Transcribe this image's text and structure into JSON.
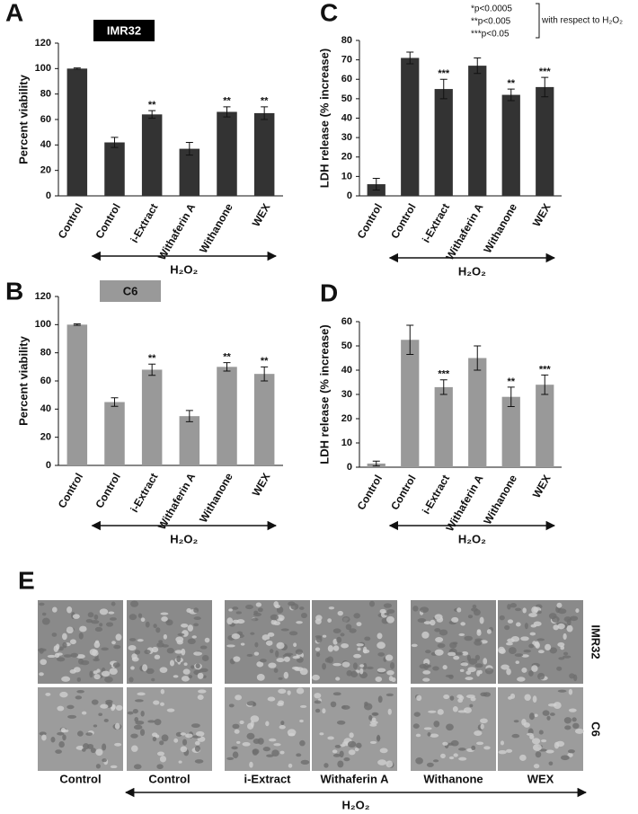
{
  "chart_data": [
    {
      "type": "bar",
      "panel": "A",
      "title": "IMR32",
      "ylabel": "Percent viability",
      "categories": [
        "Control",
        "Control",
        "i-Extract",
        "Withaferin A",
        "Withanone",
        "WEX"
      ],
      "values": [
        100,
        42,
        64,
        37,
        66,
        65
      ],
      "errors": [
        0.5,
        4,
        3,
        5,
        4,
        5
      ],
      "annotations": [
        null,
        null,
        "**",
        null,
        "**",
        "**"
      ],
      "group_label": "H₂O₂",
      "color": "#333333",
      "ylim": [
        0,
        120
      ],
      "yticks": [
        0,
        20,
        40,
        60,
        80,
        100,
        120
      ]
    },
    {
      "type": "bar",
      "panel": "C",
      "ylabel": "LDH release (% increase)",
      "categories": [
        "Control",
        "Control",
        "i-Extract",
        "Withaferin A",
        "Withanone",
        "WEX"
      ],
      "values": [
        6,
        71,
        55,
        67,
        52,
        56
      ],
      "errors": [
        3,
        3,
        5,
        4,
        3,
        5
      ],
      "annotations": [
        null,
        null,
        "***",
        null,
        "**",
        "***"
      ],
      "group_label": "H₂O₂",
      "legend_notes": [
        "*p<0.0005",
        "**p<0.005",
        "***p<0.05"
      ],
      "legend_caption": "with respect to H₂O₂",
      "color": "#333333",
      "ylim": [
        0,
        80
      ],
      "yticks": [
        0,
        10,
        20,
        30,
        40,
        50,
        60,
        70,
        80
      ]
    },
    {
      "type": "bar",
      "panel": "B",
      "title": "C6",
      "ylabel": "Percent viability",
      "categories": [
        "Control",
        "Control",
        "i-Extract",
        "Withaferin A",
        "Withanone",
        "WEX"
      ],
      "values": [
        100,
        45,
        68,
        35,
        70,
        65
      ],
      "errors": [
        0.5,
        3,
        4,
        4,
        3,
        5
      ],
      "annotations": [
        null,
        null,
        "**",
        null,
        "**",
        "**"
      ],
      "group_label": "H₂O₂",
      "color": "#999999",
      "ylim": [
        0,
        120
      ],
      "yticks": [
        0,
        20,
        40,
        60,
        80,
        100,
        120
      ]
    },
    {
      "type": "bar",
      "panel": "D",
      "ylabel": "LDH release (% increase)",
      "categories": [
        "Control",
        "Control",
        "i-Extract",
        "Withaferin A",
        "Withanone",
        "WEX"
      ],
      "values": [
        1.5,
        52.5,
        33,
        45,
        29,
        34
      ],
      "errors": [
        1,
        6,
        3,
        5,
        4,
        4
      ],
      "annotations": [
        null,
        null,
        "***",
        null,
        "**",
        "***"
      ],
      "group_label": "H₂O₂",
      "color": "#999999",
      "ylim": [
        0,
        60
      ],
      "yticks": [
        0,
        10,
        20,
        30,
        40,
        50,
        60
      ]
    }
  ],
  "panel_e": {
    "panel": "E",
    "columns": [
      "Control",
      "Control",
      "i-Extract",
      "Withaferin A",
      "Withanone",
      "WEX"
    ],
    "rows": [
      "IMR32",
      "C6"
    ],
    "group_label": "H₂O₂"
  }
}
